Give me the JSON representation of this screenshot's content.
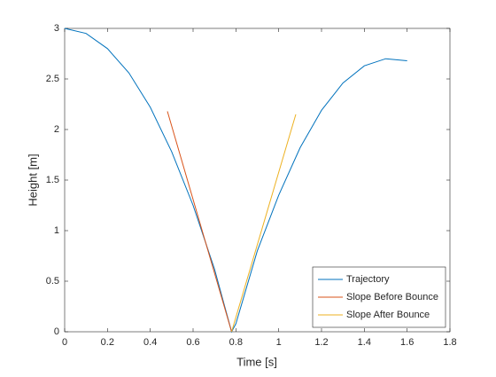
{
  "chart_data": {
    "type": "line",
    "xlabel": "Time [s]",
    "ylabel": "Height [m]",
    "xlim": [
      0,
      1.8
    ],
    "xticks": [
      0,
      0.2,
      0.4,
      0.6,
      0.8,
      1,
      1.2,
      1.4,
      1.6,
      1.8
    ],
    "ylim": [
      0,
      3
    ],
    "yticks": [
      0,
      0.5,
      1,
      1.5,
      2,
      2.5,
      3
    ],
    "legend": "lower right",
    "series": [
      {
        "name": "Trajectory",
        "color": "#0072bd",
        "x": [
          0,
          0.1,
          0.2,
          0.3,
          0.4,
          0.5,
          0.6,
          0.7,
          0.78,
          0.8,
          0.9,
          1.0,
          1.1,
          1.2,
          1.3,
          1.4,
          1.5,
          1.6
        ],
        "values": [
          3,
          2.95,
          2.8,
          2.56,
          2.22,
          1.78,
          1.25,
          0.62,
          0,
          0.08,
          0.8,
          1.35,
          1.82,
          2.19,
          2.46,
          2.63,
          2.7,
          2.68
        ]
      },
      {
        "name": "Slope Before Bounce",
        "color": "#d95319",
        "x": [
          0.48,
          0.78
        ],
        "values": [
          2.18,
          0
        ]
      },
      {
        "name": "Slope After Bounce",
        "color": "#edb120",
        "x": [
          0.78,
          1.08
        ],
        "values": [
          0,
          2.15
        ]
      }
    ]
  }
}
